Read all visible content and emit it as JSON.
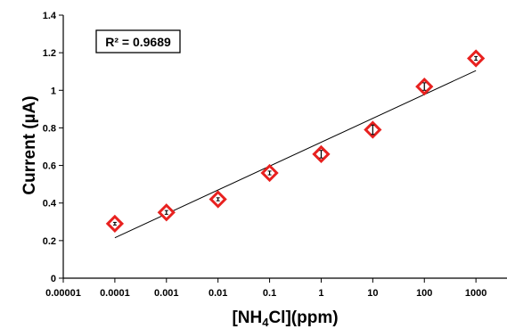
{
  "chart_data": {
    "type": "scatter",
    "xscale": "log",
    "x_ticks": [
      "0.00001",
      "0.0001",
      "0.001",
      "0.01",
      "0.1",
      "1",
      "10",
      "100",
      "1000"
    ],
    "y_ticks": [
      "0",
      "0.2",
      "0.4",
      "0.6",
      "0.8",
      "1",
      "1.2",
      "1.4"
    ],
    "xlim": [
      1e-05,
      4000
    ],
    "ylim": [
      0,
      1.4
    ],
    "xlabel_main": "[NH",
    "xlabel_sub": "4",
    "xlabel_rest": "Cl](ppm)",
    "ylabel": "Current (µA)",
    "r2_label": "R² = 0.9689",
    "marker_color": "#e8211f",
    "grid": false,
    "series": [
      {
        "x": [
          0.0001,
          0.001,
          0.01,
          0.1,
          1,
          10,
          100,
          1000
        ],
        "y": [
          0.29,
          0.35,
          0.42,
          0.56,
          0.66,
          0.79,
          1.02,
          1.17
        ],
        "err": [
          0.005,
          0.01,
          0.008,
          0.01,
          0.02,
          0.025,
          0.02,
          0.01
        ]
      }
    ],
    "trendline": {
      "x": [
        0.0001,
        1000
      ],
      "y": [
        0.215,
        1.105
      ]
    }
  }
}
